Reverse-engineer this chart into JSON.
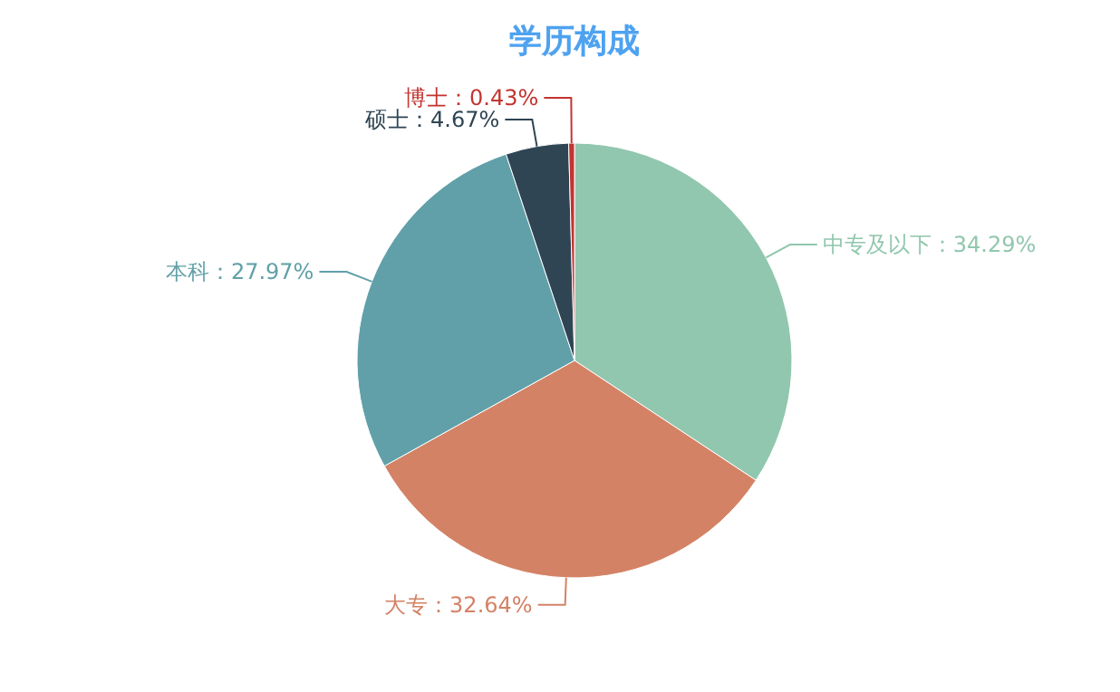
{
  "chart_data": {
    "type": "pie",
    "title": "学历构成",
    "categories": [
      "中专及以下",
      "大专",
      "本科",
      "硕士",
      "博士"
    ],
    "values": [
      34.29,
      32.64,
      27.97,
      4.67,
      0.43
    ],
    "value_labels": [
      "：34.29%",
      "：32.64%",
      "：27.97%",
      "：4.67%",
      "：0.43%"
    ],
    "colors": [
      "#91c7ae",
      "#d48265",
      "#61a0a8",
      "#2f4554",
      "#c23531"
    ]
  }
}
